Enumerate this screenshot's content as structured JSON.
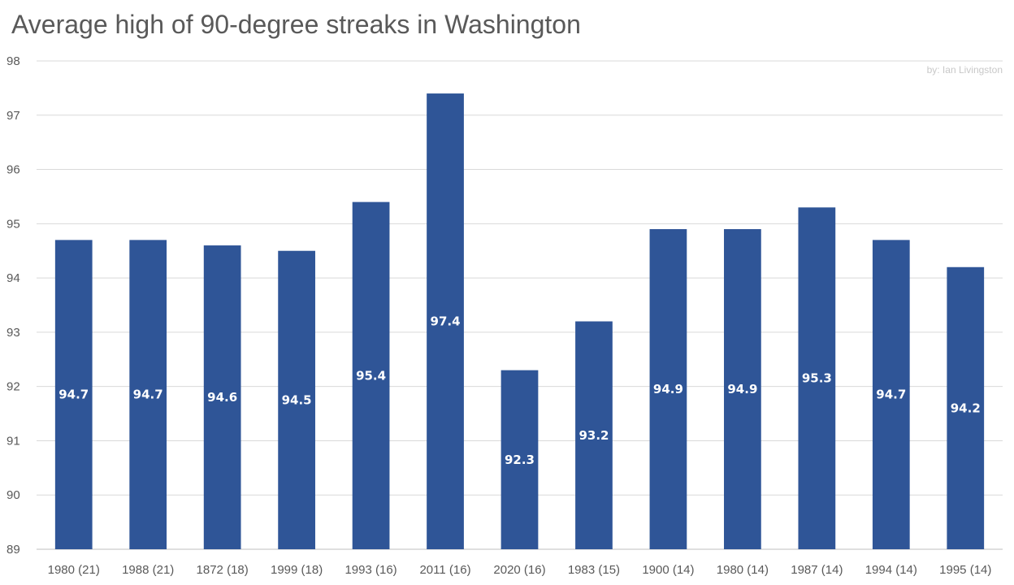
{
  "chart_data": {
    "type": "bar",
    "title": "Average high of 90-degree streaks in Washington",
    "credit": "by: Ian Livingston",
    "xlabel": "",
    "ylabel": "",
    "ylim": [
      89,
      98
    ],
    "yticks": [
      89,
      90,
      91,
      92,
      93,
      94,
      95,
      96,
      97,
      98
    ],
    "grid": true,
    "legend": "none",
    "bar_color": "#2f5597",
    "label_color": "#ffffff",
    "categories": [
      "1980 (21)",
      "1988 (21)",
      "1872 (18)",
      "1999 (18)",
      "1993 (16)",
      "2011 (16)",
      "2020 (16)",
      "1983 (15)",
      "1900 (14)",
      "1980 (14)",
      "1987 (14)",
      "1994 (14)",
      "1995 (14)"
    ],
    "values": [
      94.7,
      94.7,
      94.6,
      94.5,
      95.4,
      97.4,
      92.3,
      93.2,
      94.9,
      94.9,
      95.3,
      94.7,
      94.2
    ],
    "data_labels": [
      "94.7",
      "94.7",
      "94.6",
      "94.5",
      "95.4",
      "97.4",
      "92.3",
      "93.2",
      "94.9",
      "94.9",
      "95.3",
      "94.7",
      "94.2"
    ]
  }
}
